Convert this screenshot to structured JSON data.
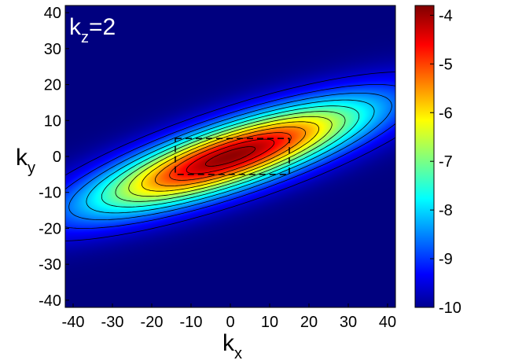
{
  "chart_data": {
    "type": "heatmap",
    "annotation": {
      "main": "k",
      "sub": "z",
      "rest": "=2"
    },
    "xlabel": {
      "main": "k",
      "sub": "x"
    },
    "ylabel": {
      "main": "k",
      "sub": "y"
    },
    "xlim": [
      -42,
      42
    ],
    "ylim": [
      -42,
      42
    ],
    "xticks": [
      -40,
      -30,
      -20,
      -10,
      0,
      10,
      20,
      30,
      40
    ],
    "yticks": [
      -40,
      -30,
      -20,
      -10,
      0,
      10,
      20,
      30,
      40
    ],
    "colorbar": {
      "range": [
        -10,
        -3.8
      ],
      "ticks": [
        -10,
        -9,
        -8,
        -7,
        -6,
        -5,
        -4
      ]
    },
    "colormap": "jet",
    "field": {
      "peak_value": -3.9,
      "peak_center": [
        0,
        0
      ],
      "major_axis_angle_deg": 20,
      "major_sigma": 26,
      "minor_sigma": 6,
      "background_value": -10
    },
    "contour_levels": [
      -9.5,
      -9.0,
      -8.5,
      -8.0,
      -7.5,
      -7.0,
      -6.5,
      -6.0,
      -5.5,
      -5.0,
      -4.5,
      -4.1
    ],
    "dashed_box": {
      "x": [
        -14,
        15
      ],
      "y": [
        -5,
        5
      ]
    }
  }
}
